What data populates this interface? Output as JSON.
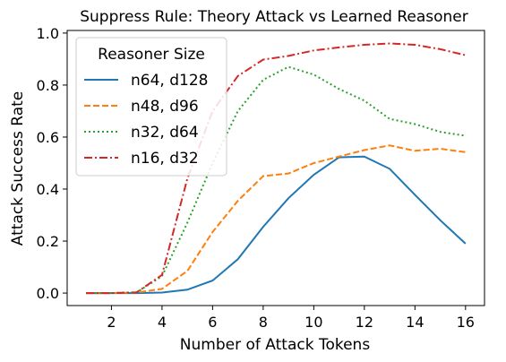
{
  "chart_data": {
    "type": "line",
    "title": "Suppress Rule: Theory Attack vs Learned Reasoner",
    "xlabel": "Number of Attack Tokens",
    "ylabel": "Attack Success Rate",
    "x": [
      1,
      2,
      3,
      4,
      5,
      6,
      7,
      8,
      9,
      10,
      11,
      12,
      13,
      14,
      15,
      16
    ],
    "xlim": [
      0.25,
      16.75
    ],
    "ylim": [
      -0.048,
      1.01
    ],
    "xticks": [
      2,
      4,
      6,
      8,
      10,
      12,
      14,
      16
    ],
    "xtick_labels": [
      "2",
      "4",
      "6",
      "8",
      "10",
      "12",
      "14",
      "16"
    ],
    "yticks": [
      0.0,
      0.2,
      0.4,
      0.6,
      0.8,
      1.0
    ],
    "ytick_labels": [
      "0.0",
      "0.2",
      "0.4",
      "0.6",
      "0.8",
      "1.0"
    ],
    "grid": false,
    "legend": {
      "title": "Reasoner Size",
      "placement": "top-left"
    },
    "series": [
      {
        "name": "n64, d128",
        "color": "#1f77b4",
        "style": "solid",
        "values": [
          0.0,
          0.0,
          0.0,
          0.002,
          0.013,
          0.048,
          0.13,
          0.255,
          0.365,
          0.455,
          0.522,
          0.525,
          0.478,
          0.378,
          0.28,
          0.19
        ]
      },
      {
        "name": "n48, d96",
        "color": "#ff7f0e",
        "style": "dashed",
        "values": [
          0.0,
          0.0,
          0.002,
          0.016,
          0.085,
          0.235,
          0.355,
          0.45,
          0.46,
          0.5,
          0.525,
          0.55,
          0.568,
          0.547,
          0.555,
          0.542
        ]
      },
      {
        "name": "n32, d64",
        "color": "#2ca02c",
        "style": "dotted",
        "values": [
          0.0,
          0.0,
          0.003,
          0.065,
          0.27,
          0.5,
          0.7,
          0.82,
          0.87,
          0.84,
          0.785,
          0.74,
          0.67,
          0.65,
          0.62,
          0.605
        ]
      },
      {
        "name": "n16, d32",
        "color": "#d62728",
        "style": "dashdot",
        "values": [
          0.0,
          0.0,
          0.003,
          0.07,
          0.44,
          0.7,
          0.835,
          0.898,
          0.912,
          0.933,
          0.945,
          0.955,
          0.96,
          0.955,
          0.938,
          0.915
        ]
      }
    ]
  }
}
